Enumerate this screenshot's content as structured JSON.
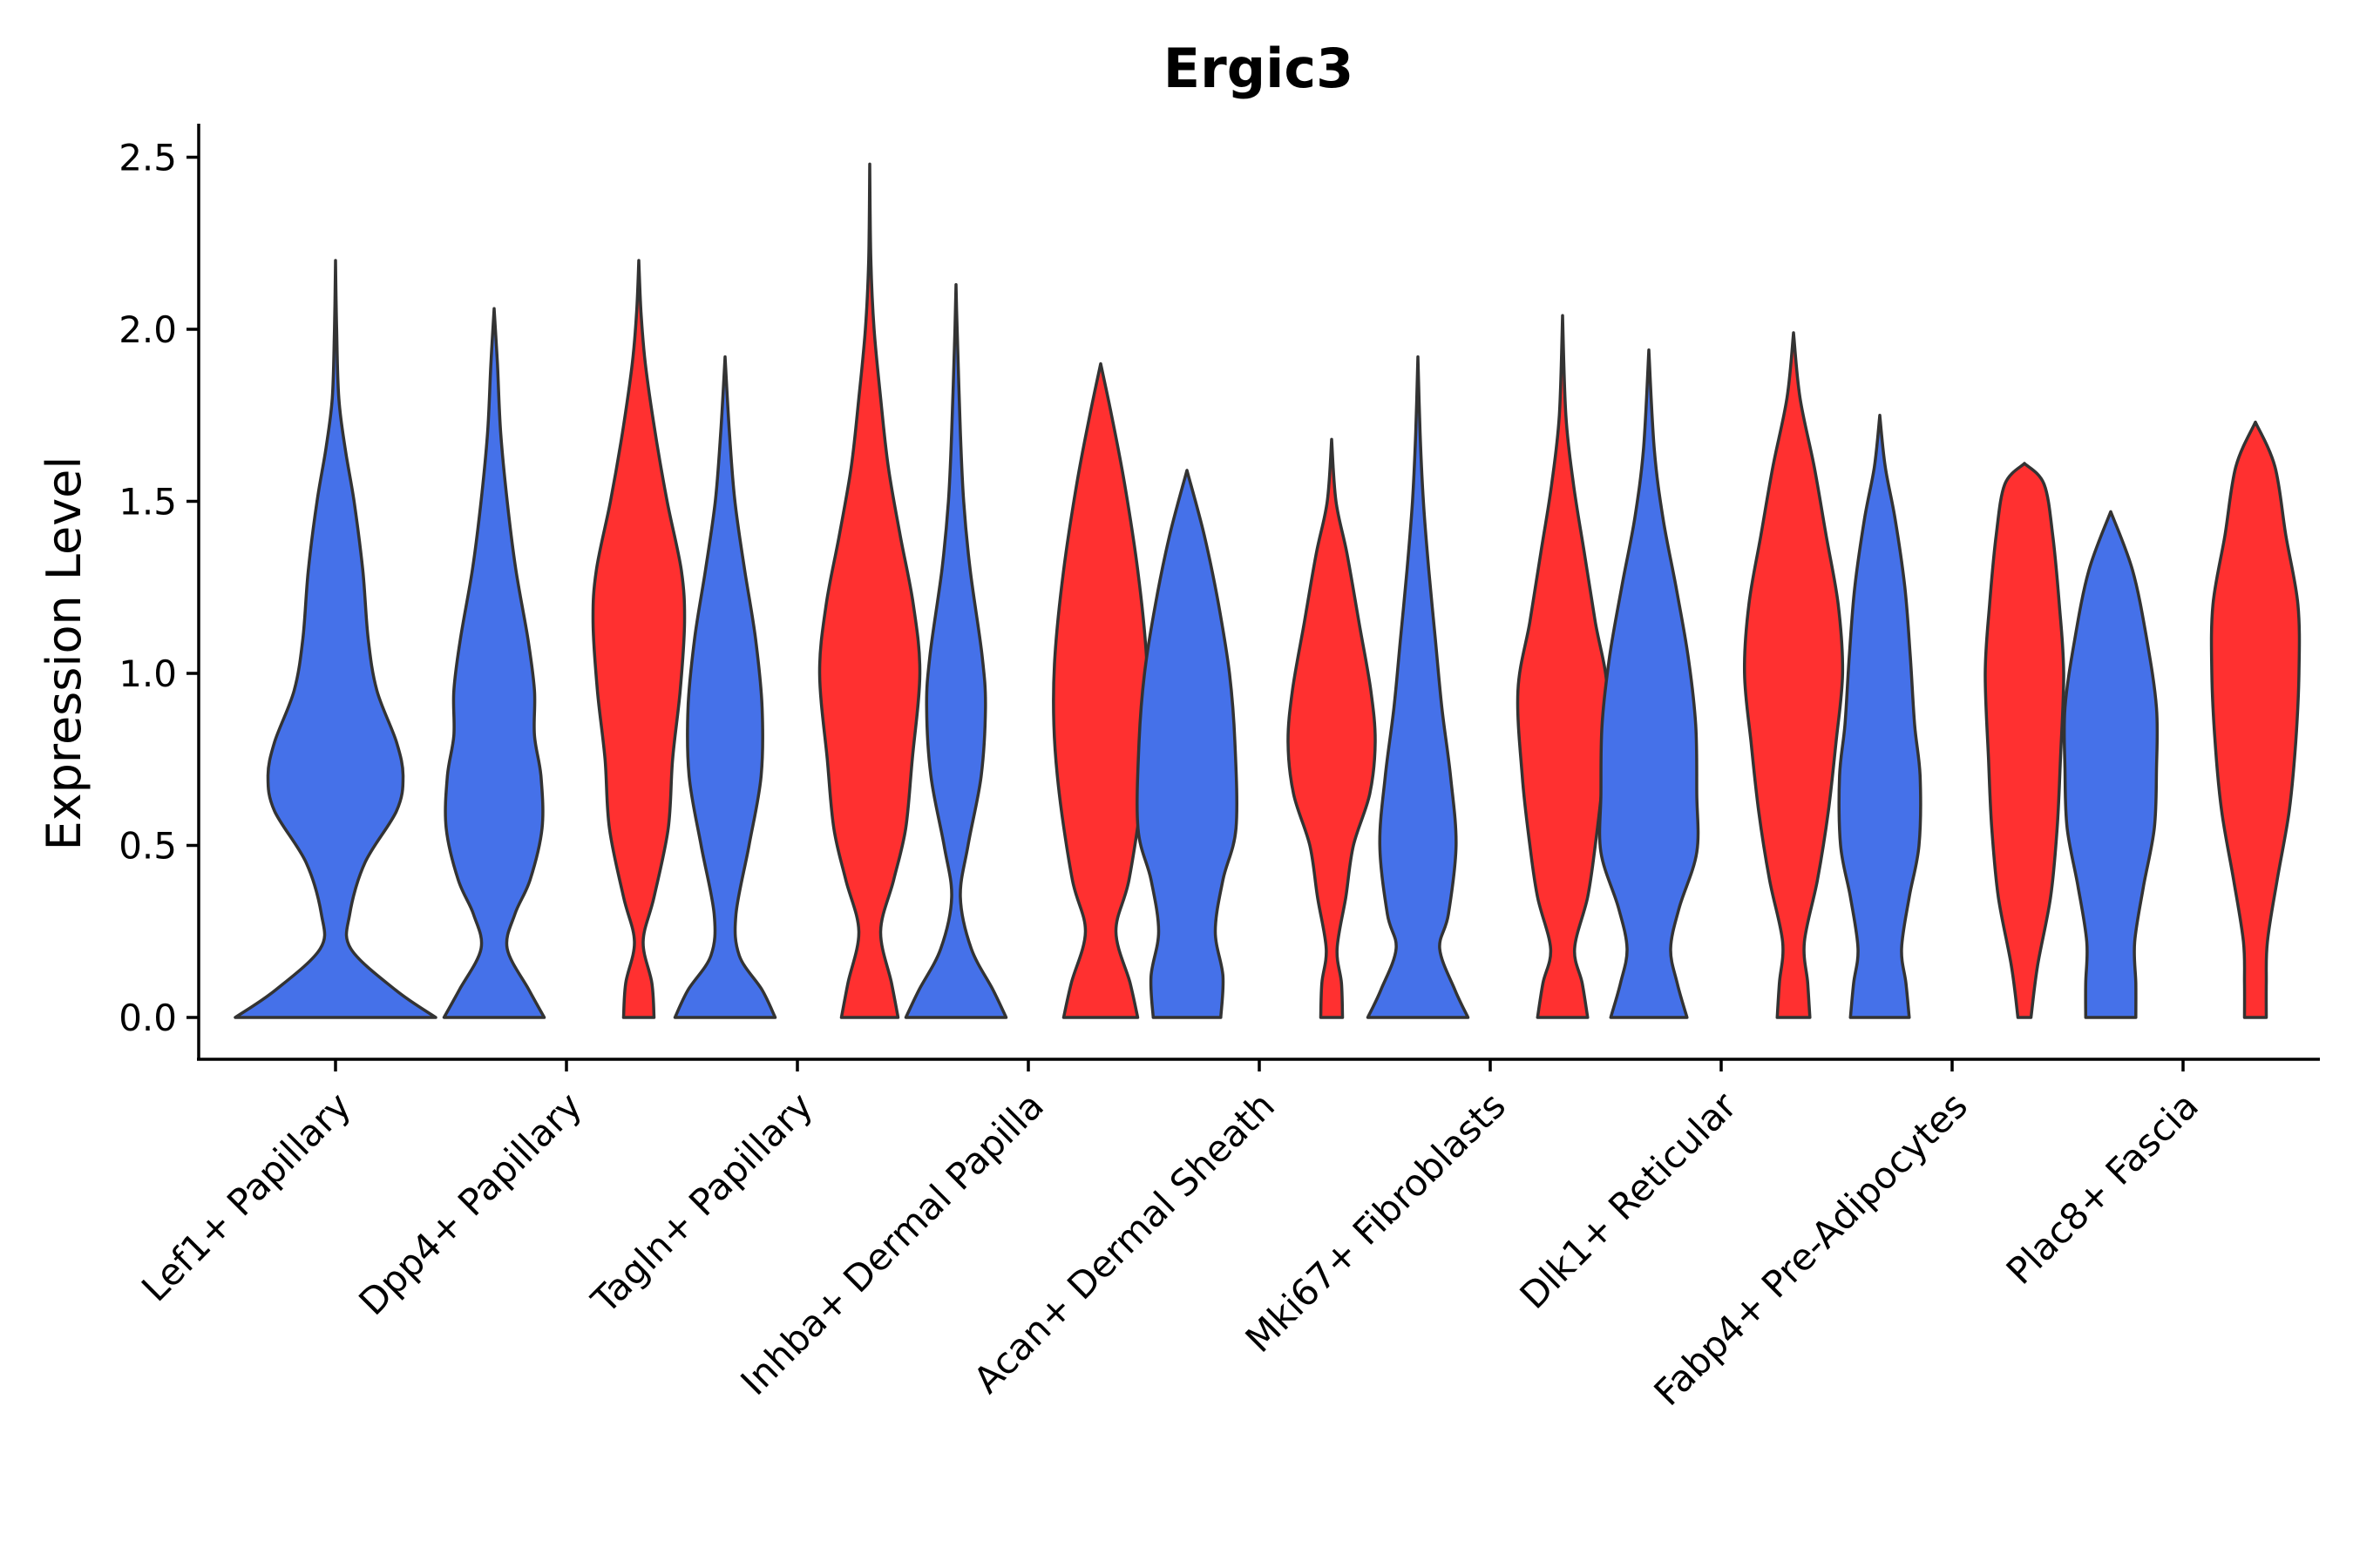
{
  "chart_data": {
    "type": "violin",
    "title": "Ergic3",
    "xlabel": "",
    "ylabel": "Expression Level",
    "ylim": [
      -0.12,
      2.6
    ],
    "yticks": [
      "0.0",
      "0.5",
      "1.0",
      "1.5",
      "2.0",
      "2.5"
    ],
    "ytick_values": [
      0,
      0.5,
      1.0,
      1.5,
      2.0,
      2.5
    ],
    "grid": false,
    "legend": "none",
    "split_colors": [
      "#4571E9",
      "#FF3030"
    ],
    "categories": [
      "Lef1+ Papillary",
      "Dpp4+ Papillary",
      "Tagln+ Papillary",
      "Inhba+ Dermal Papilla",
      "Acan+ Dermal Sheath",
      "Mki67+ Fibroblasts",
      "Dlk1+ Reticular",
      "Fabp4+ Pre-Adipocytes",
      "Plac8+ Fascia"
    ],
    "violins": [
      {
        "category": "Lef1+ Papillary",
        "group": 0,
        "max": 2.2,
        "profile": [
          [
            0,
            0.92
          ],
          [
            0.08,
            0.55
          ],
          [
            0.2,
            0.14
          ],
          [
            0.3,
            0.13
          ],
          [
            0.45,
            0.27
          ],
          [
            0.6,
            0.56
          ],
          [
            0.7,
            0.62
          ],
          [
            0.8,
            0.56
          ],
          [
            0.95,
            0.38
          ],
          [
            1.1,
            0.3
          ],
          [
            1.3,
            0.25
          ],
          [
            1.5,
            0.17
          ],
          [
            1.65,
            0.09
          ],
          [
            1.8,
            0.03
          ],
          [
            2.0,
            0.01
          ],
          [
            2.2,
            0
          ]
        ]
      },
      {
        "category": "Dpp4+ Papillary",
        "group": 0,
        "max": 2.06,
        "profile": [
          [
            0,
            0.46
          ],
          [
            0.08,
            0.32
          ],
          [
            0.2,
            0.12
          ],
          [
            0.3,
            0.19
          ],
          [
            0.4,
            0.33
          ],
          [
            0.55,
            0.44
          ],
          [
            0.7,
            0.43
          ],
          [
            0.82,
            0.37
          ],
          [
            0.95,
            0.37
          ],
          [
            1.1,
            0.31
          ],
          [
            1.3,
            0.2
          ],
          [
            1.5,
            0.12
          ],
          [
            1.7,
            0.06
          ],
          [
            1.9,
            0.03
          ],
          [
            2.06,
            0
          ]
        ]
      },
      {
        "category": "Dpp4+ Papillary",
        "group": 1,
        "max": 2.2,
        "profile": [
          [
            0,
            0.14
          ],
          [
            0.1,
            0.12
          ],
          [
            0.22,
            0.04
          ],
          [
            0.35,
            0.14
          ],
          [
            0.55,
            0.27
          ],
          [
            0.75,
            0.31
          ],
          [
            0.95,
            0.38
          ],
          [
            1.15,
            0.42
          ],
          [
            1.3,
            0.39
          ],
          [
            1.5,
            0.26
          ],
          [
            1.7,
            0.15
          ],
          [
            1.9,
            0.06
          ],
          [
            2.05,
            0.02
          ],
          [
            2.2,
            0
          ]
        ]
      },
      {
        "category": "Tagln+ Papillary",
        "group": 0,
        "max": 1.92,
        "profile": [
          [
            0,
            0.46
          ],
          [
            0.08,
            0.34
          ],
          [
            0.18,
            0.13
          ],
          [
            0.3,
            0.1
          ],
          [
            0.5,
            0.22
          ],
          [
            0.7,
            0.33
          ],
          [
            0.9,
            0.34
          ],
          [
            1.1,
            0.28
          ],
          [
            1.3,
            0.18
          ],
          [
            1.5,
            0.09
          ],
          [
            1.7,
            0.04
          ],
          [
            1.92,
            0
          ]
        ]
      },
      {
        "category": "Tagln+ Papillary",
        "group": 1,
        "max": 2.48,
        "profile": [
          [
            0,
            0.26
          ],
          [
            0.1,
            0.2
          ],
          [
            0.25,
            0.1
          ],
          [
            0.4,
            0.22
          ],
          [
            0.55,
            0.33
          ],
          [
            0.75,
            0.39
          ],
          [
            1.0,
            0.46
          ],
          [
            1.2,
            0.4
          ],
          [
            1.4,
            0.28
          ],
          [
            1.6,
            0.17
          ],
          [
            1.8,
            0.1
          ],
          [
            2.0,
            0.04
          ],
          [
            2.2,
            0.01
          ],
          [
            2.48,
            0
          ]
        ]
      },
      {
        "category": "Inhba+ Dermal Papilla",
        "group": 0,
        "max": 2.13,
        "profile": [
          [
            0,
            0.46
          ],
          [
            0.08,
            0.34
          ],
          [
            0.2,
            0.14
          ],
          [
            0.35,
            0.04
          ],
          [
            0.5,
            0.11
          ],
          [
            0.7,
            0.23
          ],
          [
            0.9,
            0.27
          ],
          [
            1.05,
            0.24
          ],
          [
            1.3,
            0.13
          ],
          [
            1.5,
            0.07
          ],
          [
            1.7,
            0.04
          ],
          [
            2.0,
            0.01
          ],
          [
            2.13,
            0
          ]
        ]
      },
      {
        "category": "Inhba+ Dermal Papilla",
        "group": 1,
        "max": 1.9,
        "profile": [
          [
            0,
            0.34
          ],
          [
            0.1,
            0.27
          ],
          [
            0.25,
            0.14
          ],
          [
            0.4,
            0.26
          ],
          [
            0.65,
            0.38
          ],
          [
            0.85,
            0.43
          ],
          [
            1.05,
            0.42
          ],
          [
            1.3,
            0.34
          ],
          [
            1.55,
            0.22
          ],
          [
            1.75,
            0.1
          ],
          [
            1.9,
            0
          ]
        ]
      },
      {
        "category": "Acan+ Dermal Sheath",
        "group": 0,
        "max": 1.59,
        "profile": [
          [
            0,
            0.31
          ],
          [
            0.12,
            0.33
          ],
          [
            0.25,
            0.26
          ],
          [
            0.4,
            0.33
          ],
          [
            0.55,
            0.45
          ],
          [
            0.8,
            0.44
          ],
          [
            1.0,
            0.39
          ],
          [
            1.2,
            0.29
          ],
          [
            1.4,
            0.16
          ],
          [
            1.59,
            0
          ]
        ]
      },
      {
        "category": "Acan+ Dermal Sheath",
        "group": 1,
        "max": 1.68,
        "profile": [
          [
            0,
            0.1
          ],
          [
            0.1,
            0.09
          ],
          [
            0.2,
            0.05
          ],
          [
            0.35,
            0.13
          ],
          [
            0.5,
            0.2
          ],
          [
            0.65,
            0.35
          ],
          [
            0.8,
            0.4
          ],
          [
            0.95,
            0.36
          ],
          [
            1.15,
            0.25
          ],
          [
            1.35,
            0.14
          ],
          [
            1.5,
            0.04
          ],
          [
            1.68,
            0
          ]
        ]
      },
      {
        "category": "Mki67+ Fibroblasts",
        "group": 0,
        "max": 1.92,
        "profile": [
          [
            0,
            0.46
          ],
          [
            0.08,
            0.34
          ],
          [
            0.2,
            0.2
          ],
          [
            0.3,
            0.28
          ],
          [
            0.5,
            0.35
          ],
          [
            0.7,
            0.3
          ],
          [
            0.9,
            0.22
          ],
          [
            1.1,
            0.16
          ],
          [
            1.3,
            0.1
          ],
          [
            1.5,
            0.05
          ],
          [
            1.7,
            0.02
          ],
          [
            1.92,
            0
          ]
        ]
      },
      {
        "category": "Mki67+ Fibroblasts",
        "group": 1,
        "max": 2.04,
        "profile": [
          [
            0,
            0.23
          ],
          [
            0.1,
            0.18
          ],
          [
            0.2,
            0.11
          ],
          [
            0.35,
            0.23
          ],
          [
            0.5,
            0.3
          ],
          [
            0.7,
            0.37
          ],
          [
            0.95,
            0.41
          ],
          [
            1.15,
            0.3
          ],
          [
            1.35,
            0.2
          ],
          [
            1.55,
            0.1
          ],
          [
            1.75,
            0.03
          ],
          [
            2.04,
            0
          ]
        ]
      },
      {
        "category": "Dlk1+ Reticular",
        "group": 0,
        "max": 1.94,
        "profile": [
          [
            0,
            0.35
          ],
          [
            0.1,
            0.26
          ],
          [
            0.2,
            0.2
          ],
          [
            0.32,
            0.28
          ],
          [
            0.48,
            0.44
          ],
          [
            0.65,
            0.44
          ],
          [
            0.85,
            0.43
          ],
          [
            1.05,
            0.36
          ],
          [
            1.25,
            0.25
          ],
          [
            1.45,
            0.13
          ],
          [
            1.65,
            0.05
          ],
          [
            1.94,
            0
          ]
        ]
      },
      {
        "category": "Dlk1+ Reticular",
        "group": 1,
        "max": 1.99,
        "profile": [
          [
            0,
            0.15
          ],
          [
            0.1,
            0.13
          ],
          [
            0.22,
            0.1
          ],
          [
            0.4,
            0.22
          ],
          [
            0.6,
            0.32
          ],
          [
            0.8,
            0.39
          ],
          [
            1.0,
            0.45
          ],
          [
            1.2,
            0.41
          ],
          [
            1.4,
            0.3
          ],
          [
            1.6,
            0.19
          ],
          [
            1.8,
            0.06
          ],
          [
            1.99,
            0
          ]
        ]
      },
      {
        "category": "Fabp4+ Pre-Adipocytes",
        "group": 0,
        "max": 1.75,
        "profile": [
          [
            0,
            0.27
          ],
          [
            0.1,
            0.24
          ],
          [
            0.2,
            0.2
          ],
          [
            0.35,
            0.27
          ],
          [
            0.5,
            0.36
          ],
          [
            0.7,
            0.37
          ],
          [
            0.85,
            0.32
          ],
          [
            1.05,
            0.28
          ],
          [
            1.25,
            0.23
          ],
          [
            1.45,
            0.14
          ],
          [
            1.6,
            0.05
          ],
          [
            1.75,
            0
          ]
        ]
      },
      {
        "category": "Fabp4+ Pre-Adipocytes",
        "group": 1,
        "max": 1.61,
        "profile": [
          [
            0,
            0.06
          ],
          [
            0.15,
            0.12
          ],
          [
            0.35,
            0.24
          ],
          [
            0.55,
            0.3
          ],
          [
            0.75,
            0.33
          ],
          [
            1.0,
            0.36
          ],
          [
            1.2,
            0.32
          ],
          [
            1.4,
            0.26
          ],
          [
            1.55,
            0.18
          ],
          [
            1.61,
            0
          ]
        ]
      },
      {
        "category": "Plac8+ Fascia",
        "group": 0,
        "max": 1.47,
        "profile": [
          [
            0,
            0.23
          ],
          [
            0.1,
            0.23
          ],
          [
            0.22,
            0.22
          ],
          [
            0.38,
            0.3
          ],
          [
            0.55,
            0.4
          ],
          [
            0.72,
            0.42
          ],
          [
            0.9,
            0.42
          ],
          [
            1.1,
            0.33
          ],
          [
            1.3,
            0.2
          ],
          [
            1.47,
            0
          ]
        ]
      },
      {
        "category": "Plac8+ Fascia",
        "group": 1,
        "max": 1.73,
        "profile": [
          [
            0,
            0.1
          ],
          [
            0.1,
            0.1
          ],
          [
            0.22,
            0.11
          ],
          [
            0.4,
            0.2
          ],
          [
            0.6,
            0.31
          ],
          [
            0.8,
            0.37
          ],
          [
            1.0,
            0.4
          ],
          [
            1.2,
            0.39
          ],
          [
            1.4,
            0.28
          ],
          [
            1.6,
            0.18
          ],
          [
            1.73,
            0
          ]
        ]
      }
    ]
  }
}
